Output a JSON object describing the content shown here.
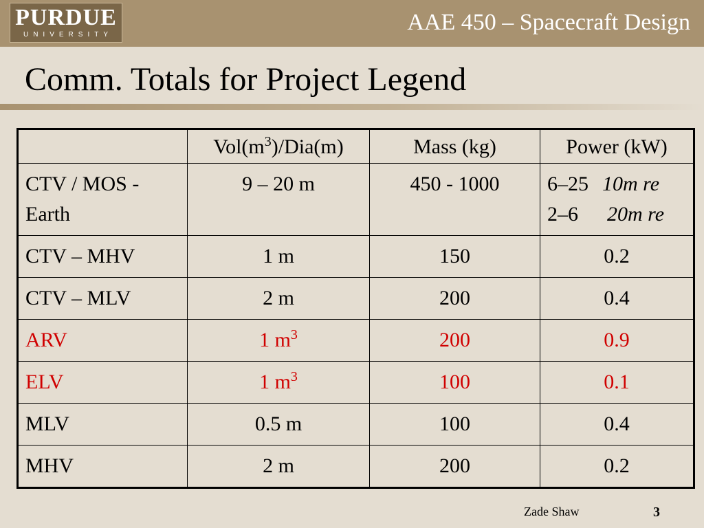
{
  "header": {
    "logo_main": "PURDUE",
    "logo_sub": "UNIVERSITY",
    "course": "AAE 450 – Spacecraft Design"
  },
  "slide": {
    "title": "Comm. Totals for Project Legend"
  },
  "table": {
    "headers": [
      "",
      "Vol(m",
      "3",
      ")/Dia(m)",
      "Mass (kg)",
      "Power (kW)"
    ],
    "rows": [
      {
        "label": "CTV / MOS - Earth",
        "vol": "9 – 20 m",
        "mass": "450 - 1000",
        "power": [
          {
            "value": "6–25",
            "note": "10m re"
          },
          {
            "value": "2–6",
            "note": "20m re"
          }
        ]
      },
      {
        "label": "CTV – MHV",
        "vol": "1 m",
        "mass": "150",
        "power_value": "0.2"
      },
      {
        "label": "CTV – MLV",
        "vol": "2 m",
        "mass": "200",
        "power_value": "0.4"
      },
      {
        "label": "ARV",
        "vol": "1 m",
        "vol_sup": "3",
        "mass": "200",
        "power_value": "0.9"
      },
      {
        "label": "ELV",
        "vol": "1 m",
        "vol_sup": "3",
        "mass": "100",
        "power_value": "0.1"
      },
      {
        "label": "MLV",
        "vol": "0.5 m",
        "mass": "100",
        "power_value": "0.4"
      },
      {
        "label": "MHV",
        "vol": "2 m",
        "mass": "200",
        "power_value": "0.2"
      }
    ],
    "highlight_color": "#d00000"
  },
  "footer": {
    "author": "Zade Shaw",
    "page": "3"
  },
  "colors": {
    "background": "#e4ddd1",
    "header_bar": "#a89270",
    "logo_bg": "#7a6648"
  }
}
